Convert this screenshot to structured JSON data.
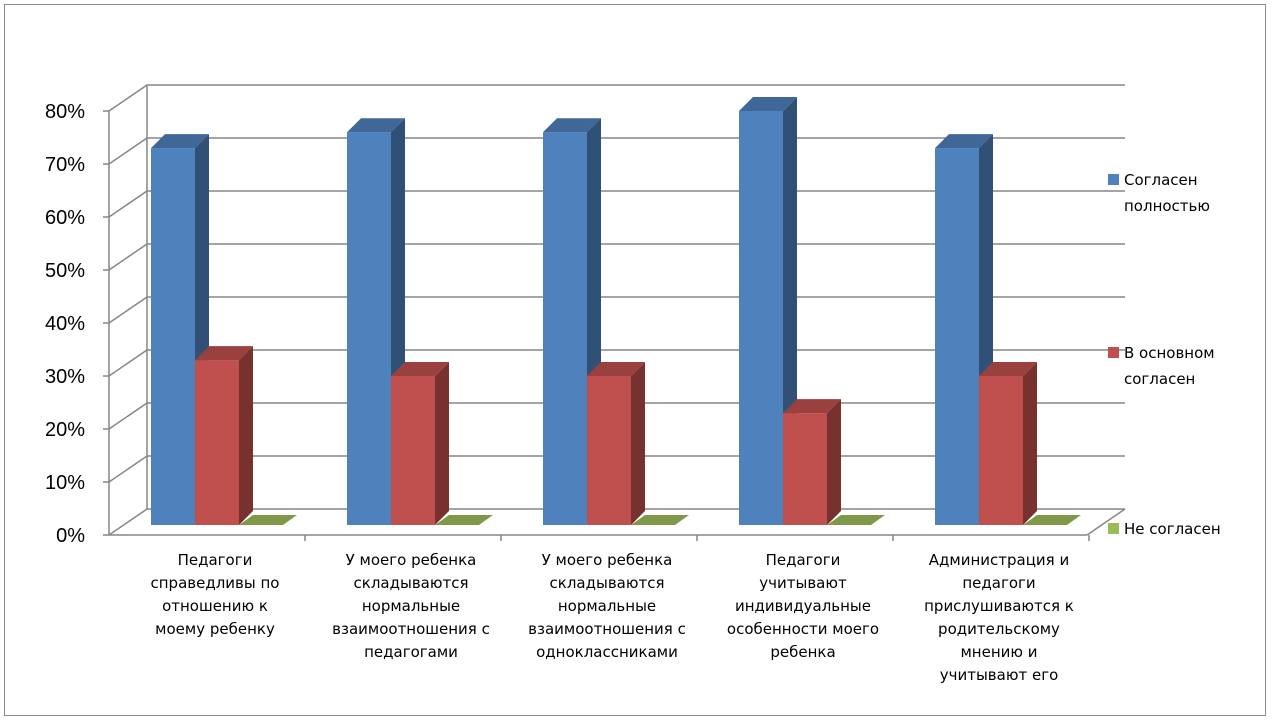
{
  "chart_data": {
    "type": "bar",
    "title": "",
    "xlabel": "",
    "ylabel": "",
    "ylim": [
      0,
      0.8
    ],
    "y_ticks": [
      "0%",
      "10%",
      "20%",
      "30%",
      "40%",
      "50%",
      "60%",
      "70%",
      "80%"
    ],
    "grid": true,
    "legend_position": "right",
    "categories": [
      [
        "Педагоги",
        "справедливы по",
        "отношению к",
        "моему ребенку"
      ],
      [
        "У моего ребенка",
        "складываются",
        "нормальные",
        "взаимоотношения с",
        "педагогами"
      ],
      [
        "У моего ребенка",
        "складываются",
        "нормальные",
        "взаимоотношения с",
        "одноклассниками"
      ],
      [
        "Педагоги",
        "учитывают",
        "индивидуальные",
        "особенности моего",
        "ребенка"
      ],
      [
        "Администрация и",
        "педагоги",
        "прислушиваются к",
        "родительскому",
        "мнению и",
        "учитывают его"
      ]
    ],
    "series": [
      {
        "name": [
          "Согласен",
          "полностью"
        ],
        "values": [
          0.73,
          0.76,
          0.76,
          0.8,
          0.73
        ],
        "color": "#4F81BD"
      },
      {
        "name": [
          "В основном",
          "согласен"
        ],
        "values": [
          0.33,
          0.3,
          0.3,
          0.23,
          0.3
        ],
        "color": "#C0504D"
      },
      {
        "name": [
          "Не согласен"
        ],
        "values": [
          0,
          0,
          0,
          0,
          0
        ],
        "color": "#9BBB59"
      }
    ]
  }
}
